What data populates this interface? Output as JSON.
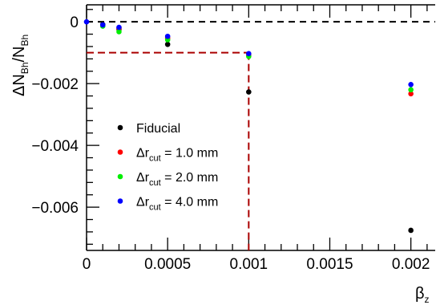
{
  "chart_data": {
    "type": "scatter",
    "title": "",
    "ylabel": {
      "main": "ΔN",
      "sub1": "Bh",
      "slash": "/N",
      "sub2": "Bh"
    },
    "xlabel": {
      "main": "β",
      "sub": "z"
    },
    "xlim": [
      0,
      0.00215
    ],
    "ylim": [
      -0.0074,
      0.00055
    ],
    "x_ticks": [
      {
        "value": 0,
        "label": "0"
      },
      {
        "value": 0.0005,
        "label": "0.0005"
      },
      {
        "value": 0.001,
        "label": "0.001"
      },
      {
        "value": 0.0015,
        "label": "0.0015"
      },
      {
        "value": 0.002,
        "label": "0.002"
      }
    ],
    "y_ticks": [
      {
        "value": 0,
        "label": "0"
      },
      {
        "value": -0.002,
        "label": "−0.002"
      },
      {
        "value": -0.004,
        "label": "−0.004"
      },
      {
        "value": -0.006,
        "label": "−0.006"
      }
    ],
    "legend_position": "lower-left",
    "series": [
      {
        "name": "Fiducial",
        "color": "#000000",
        "x": [
          0.0001,
          0.0002,
          0.0005,
          0.001,
          0.002
        ],
        "y": [
          -9e-05,
          -0.00025,
          -0.00073,
          -0.00227,
          -0.00675
        ]
      },
      {
        "name": "Δr_cut = 1.0 mm",
        "color": "#ff0000",
        "x": [
          0.0001,
          0.0002,
          0.0005,
          0.001,
          0.002
        ],
        "y": [
          -0.00012,
          -0.00022,
          -0.00053,
          -0.00108,
          -0.00233
        ]
      },
      {
        "name": "Δr_cut = 2.0 mm",
        "color": "#00ee00",
        "x": [
          0.0001,
          0.0002,
          0.0005,
          0.001,
          0.002
        ],
        "y": [
          -0.00014,
          -0.00032,
          -0.00058,
          -0.00112,
          -0.0022
        ]
      },
      {
        "name": "Δr_cut = 4.0 mm",
        "color": "#0000ff",
        "x": [
          0.0001,
          0.0002,
          0.0005,
          0.001,
          0.002
        ],
        "y": [
          -0.0001,
          -0.00018,
          -0.00047,
          -0.00103,
          -0.00203
        ]
      }
    ],
    "legend": [
      {
        "prefix": "Fiducial",
        "sub": "",
        "suffix": "",
        "color": "#000000"
      },
      {
        "prefix": "Δr",
        "sub": "cut",
        "suffix": " = 1.0 mm",
        "color": "#ff0000"
      },
      {
        "prefix": "Δr",
        "sub": "cut",
        "suffix": " = 2.0 mm",
        "color": "#00ee00"
      },
      {
        "prefix": "Δr",
        "sub": "cut",
        "suffix": " = 4.0 mm",
        "color": "#0000ff"
      }
    ],
    "zero_line": {
      "y": 0,
      "color": "#000000",
      "style": "dashed"
    },
    "reference_lines": {
      "color": "#aa0000",
      "horizontal_y": -0.001,
      "horizontal_x_range": [
        0,
        0.001
      ],
      "vertical_x": 0.001,
      "vertical_y_range": [
        -0.0074,
        -0.001
      ]
    },
    "grid": false
  }
}
